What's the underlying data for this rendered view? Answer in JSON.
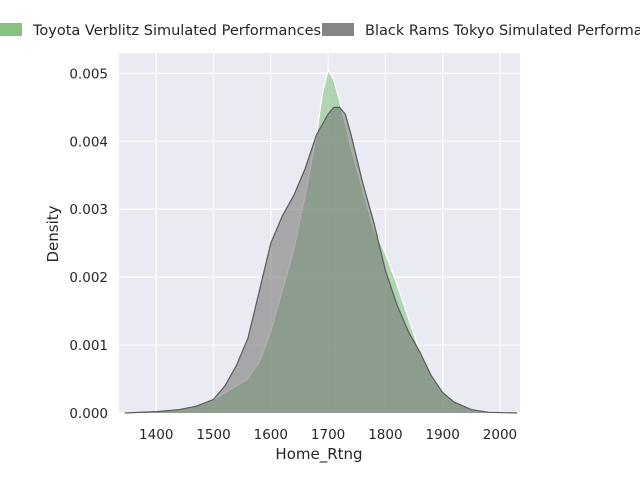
{
  "chart_data": {
    "type": "area",
    "title": "",
    "xlabel": "Home_Rtng",
    "ylabel": "Density",
    "xlim": [
      1335,
      2035
    ],
    "ylim": [
      0,
      0.0053
    ],
    "x_ticks": [
      1400,
      1500,
      1600,
      1700,
      1800,
      1900,
      2000
    ],
    "y_ticks": [
      0.0,
      0.001,
      0.002,
      0.003,
      0.004,
      0.005
    ],
    "x_tick_labels": [
      "1400",
      "1500",
      "1600",
      "1700",
      "1800",
      "1900",
      "2000"
    ],
    "y_tick_labels": [
      "0.000",
      "0.001",
      "0.002",
      "0.003",
      "0.004",
      "0.005"
    ],
    "grid": true,
    "legend_position": "top",
    "series": [
      {
        "name": "Toyota Verblitz Simulated Performances",
        "color": "#7fbf7b",
        "x": [
          1345,
          1400,
          1440,
          1470,
          1500,
          1520,
          1540,
          1560,
          1580,
          1600,
          1620,
          1640,
          1660,
          1680,
          1690,
          1700,
          1710,
          1720,
          1740,
          1760,
          1780,
          1800,
          1820,
          1840,
          1860,
          1880,
          1900,
          1920,
          1950,
          1980,
          2030
        ],
        "y": [
          0.0,
          2e-05,
          5e-05,
          0.0001,
          0.0002,
          0.0003,
          0.0004,
          0.0005,
          0.00075,
          0.0012,
          0.0018,
          0.0024,
          0.0032,
          0.0041,
          0.0047,
          0.00505,
          0.0049,
          0.0046,
          0.0039,
          0.0033,
          0.0027,
          0.00235,
          0.0019,
          0.0014,
          0.0009,
          0.00055,
          0.0003,
          0.00016,
          5e-05,
          1e-05,
          0.0
        ]
      },
      {
        "name": "Black Rams Tokyo Simulated Performances",
        "color": "#707070",
        "x": [
          1345,
          1400,
          1440,
          1470,
          1500,
          1520,
          1540,
          1560,
          1580,
          1600,
          1620,
          1640,
          1660,
          1680,
          1700,
          1710,
          1720,
          1730,
          1740,
          1760,
          1780,
          1800,
          1820,
          1840,
          1860,
          1880,
          1900,
          1920,
          1950,
          1980,
          2030
        ],
        "y": [
          0.0,
          2e-05,
          5e-05,
          0.0001,
          0.0002,
          0.0004,
          0.0007,
          0.0011,
          0.0018,
          0.0025,
          0.0029,
          0.0032,
          0.0036,
          0.0041,
          0.0044,
          0.0045,
          0.0045,
          0.0044,
          0.0041,
          0.0034,
          0.0028,
          0.0021,
          0.0016,
          0.0012,
          0.0009,
          0.00055,
          0.0003,
          0.00016,
          5e-05,
          1e-05,
          0.0
        ]
      }
    ]
  }
}
